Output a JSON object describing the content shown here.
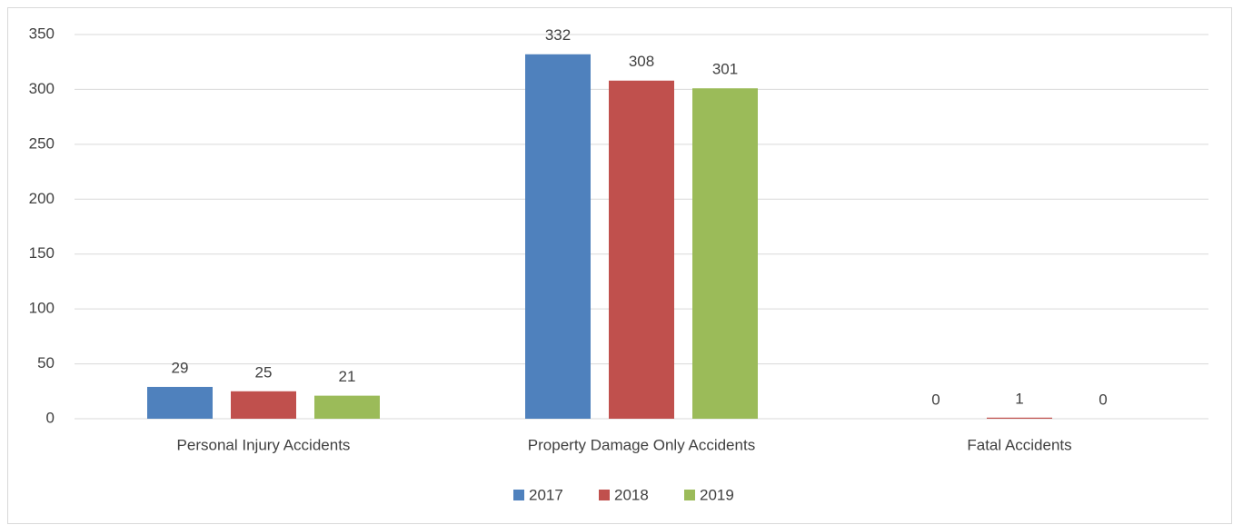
{
  "chart_data": {
    "type": "bar",
    "categories": [
      "Personal Injury Accidents",
      "Property Damage Only Accidents",
      "Fatal Accidents"
    ],
    "series": [
      {
        "name": "2017",
        "color": "#4f81bd",
        "values": [
          29,
          332,
          0
        ]
      },
      {
        "name": "2018",
        "color": "#c0504d",
        "values": [
          25,
          308,
          1
        ]
      },
      {
        "name": "2019",
        "color": "#9bbb59",
        "values": [
          21,
          301,
          0
        ]
      }
    ],
    "ylim": [
      0,
      350
    ],
    "yticks": [
      0,
      50,
      100,
      150,
      200,
      250,
      300,
      350
    ],
    "grid": true,
    "legend": "bottom",
    "data_labels": true
  }
}
